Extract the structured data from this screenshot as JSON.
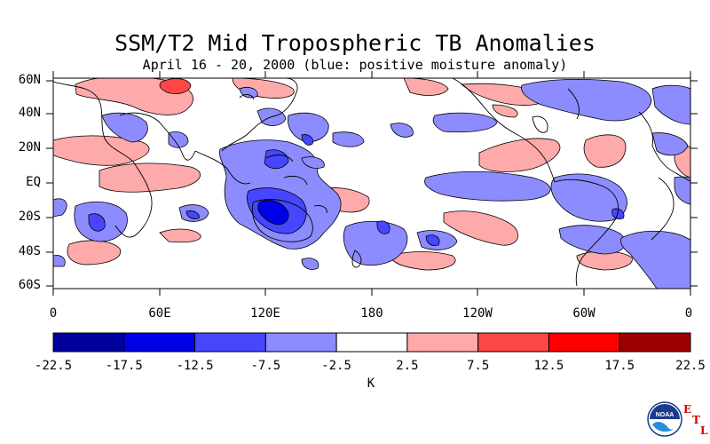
{
  "title": "SSM/T2 Mid Tropospheric TB Anomalies",
  "subtitle": "April 16 - 20, 2000 (blue: positive moisture anomaly)",
  "lat_labels": [
    "60N",
    "40N",
    "20N",
    "EQ",
    "20S",
    "40S",
    "60S"
  ],
  "lon_labels": [
    "0",
    "60E",
    "120E",
    "180",
    "120W",
    "60W",
    "0"
  ],
  "colorbar": {
    "levels": [
      "-22.5",
      "-17.5",
      "-12.5",
      "-7.5",
      "-2.5",
      "2.5",
      "7.5",
      "12.5",
      "17.5",
      "22.5"
    ],
    "colors": [
      "#00009c",
      "#0000e6",
      "#4646ff",
      "#8c8cff",
      "#ffffff",
      "#ffaaaa",
      "#ff4646",
      "#ff0000",
      "#9c0000"
    ],
    "units": "K"
  },
  "logo": {
    "text": "NOAA",
    "letters": [
      "E",
      "T",
      "L"
    ]
  }
}
